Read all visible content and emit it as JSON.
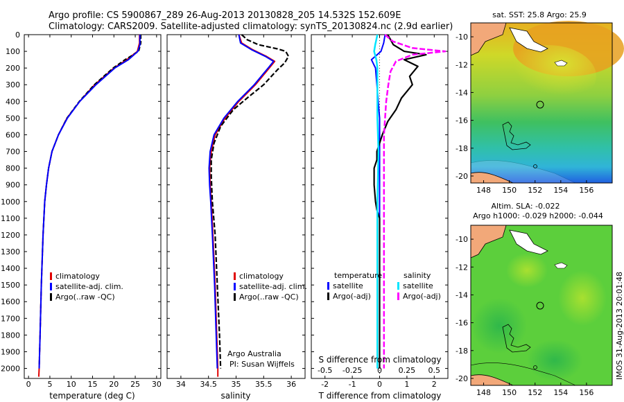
{
  "header": {
    "line1": "Argo profile: CS 5900867_289 26-Aug-2013 20130828_205 14.532S 152.609E",
    "line2": "Climatology: CARS2009. Satellite-adjusted climatology: synTS_20130824.nc (2.9d earlier)"
  },
  "depth_ticks": [
    0,
    100,
    200,
    300,
    400,
    500,
    600,
    700,
    800,
    900,
    1000,
    1100,
    1200,
    1300,
    1400,
    1500,
    1600,
    1700,
    1800,
    1900,
    2000
  ],
  "colors": {
    "climatology": "#e00000",
    "satellite": "#0000ff",
    "argo": "#000000",
    "sal_sat": "#00e5ff",
    "sal_argo": "#ff00ff"
  },
  "chart_data": [
    {
      "type": "line",
      "xlabel": "temperature (deg C)",
      "xlim": [
        -1,
        31
      ],
      "xticks": [
        0,
        5,
        10,
        15,
        20,
        25,
        30
      ],
      "ylim": [
        2060,
        0
      ],
      "legend": [
        "climatology",
        "satellite-adj. clim.",
        "Argo(..raw -QC)"
      ],
      "series": [
        {
          "name": "climatology",
          "points": [
            [
              26,
              0
            ],
            [
              26,
              50
            ],
            [
              25.5,
              100
            ],
            [
              23,
              150
            ],
            [
              20,
              200
            ],
            [
              15.5,
              300
            ],
            [
              12,
              400
            ],
            [
              9,
              500
            ],
            [
              7,
              600
            ],
            [
              5.5,
              700
            ],
            [
              4.7,
              800
            ],
            [
              4.2,
              900
            ],
            [
              3.8,
              1000
            ],
            [
              3.4,
              1200
            ],
            [
              3,
              1500
            ],
            [
              2.7,
              1800
            ],
            [
              2.5,
              2000
            ],
            [
              2.4,
              2050
            ]
          ]
        },
        {
          "name": "satellite-adj. clim.",
          "points": [
            [
              26.3,
              0
            ],
            [
              26.3,
              50
            ],
            [
              25.8,
              100
            ],
            [
              22.6,
              150
            ],
            [
              19.8,
              200
            ],
            [
              15.4,
              300
            ],
            [
              11.9,
              400
            ],
            [
              9,
              500
            ],
            [
              7,
              600
            ],
            [
              5.5,
              700
            ],
            [
              4.7,
              800
            ],
            [
              4.2,
              900
            ],
            [
              3.8,
              1000
            ],
            [
              3.4,
              1200
            ],
            [
              3,
              1500
            ],
            [
              2.7,
              1800
            ],
            [
              2.5,
              2000
            ]
          ]
        },
        {
          "name": "Argo(..raw -QC)",
          "points": [
            [
              26.1,
              0
            ],
            [
              26.1,
              60
            ],
            [
              25.6,
              100
            ],
            [
              23.4,
              150
            ],
            [
              20.2,
              200
            ],
            [
              15.8,
              300
            ],
            [
              12,
              400
            ],
            [
              9.1,
              500
            ],
            [
              7,
              600
            ],
            [
              5.5,
              700
            ],
            [
              4.7,
              800
            ],
            [
              4.2,
              900
            ],
            [
              3.8,
              1000
            ],
            [
              3.4,
              1200
            ],
            [
              3,
              1500
            ],
            [
              2.7,
              1800
            ],
            [
              2.5,
              2000
            ]
          ]
        }
      ]
    },
    {
      "type": "line",
      "xlabel": "salinity",
      "xlim": [
        33.75,
        36.25
      ],
      "xticks": [
        34,
        34.5,
        35,
        35.5,
        36
      ],
      "ylim": [
        2060,
        0
      ],
      "legend": [
        "climatology",
        "satellite-adj. clim.",
        "Argo(..raw -QC)"
      ],
      "annotations": [
        "Argo Australia",
        "PI: Susan Wijffels"
      ],
      "series": [
        {
          "name": "climatology",
          "points": [
            [
              35.05,
              0
            ],
            [
              35.1,
              50
            ],
            [
              35.3,
              90
            ],
            [
              35.55,
              130
            ],
            [
              35.7,
              160
            ],
            [
              35.6,
              200
            ],
            [
              35.35,
              300
            ],
            [
              35.05,
              400
            ],
            [
              34.8,
              500
            ],
            [
              34.62,
              600
            ],
            [
              34.55,
              700
            ],
            [
              34.52,
              800
            ],
            [
              34.53,
              900
            ],
            [
              34.55,
              1000
            ],
            [
              34.58,
              1200
            ],
            [
              34.62,
              1500
            ],
            [
              34.65,
              1800
            ],
            [
              34.67,
              2000
            ],
            [
              34.67,
              2050
            ]
          ]
        },
        {
          "name": "satellite-adj. clim.",
          "points": [
            [
              35.05,
              0
            ],
            [
              35.08,
              50
            ],
            [
              35.28,
              90
            ],
            [
              35.53,
              130
            ],
            [
              35.68,
              160
            ],
            [
              35.58,
              200
            ],
            [
              35.33,
              300
            ],
            [
              35.03,
              400
            ],
            [
              34.78,
              500
            ],
            [
              34.6,
              600
            ],
            [
              34.53,
              700
            ],
            [
              34.51,
              800
            ],
            [
              34.52,
              900
            ],
            [
              34.54,
              1000
            ],
            [
              34.57,
              1200
            ],
            [
              34.61,
              1500
            ],
            [
              34.64,
              1800
            ],
            [
              34.66,
              2000
            ]
          ]
        },
        {
          "name": "Argo(..raw -QC)",
          "points": [
            [
              35.1,
              0
            ],
            [
              35.2,
              30
            ],
            [
              35.4,
              60
            ],
            [
              35.75,
              85
            ],
            [
              35.9,
              100
            ],
            [
              35.95,
              130
            ],
            [
              35.88,
              170
            ],
            [
              35.75,
              210
            ],
            [
              35.5,
              300
            ],
            [
              35.2,
              380
            ],
            [
              34.95,
              450
            ],
            [
              34.72,
              550
            ],
            [
              34.6,
              650
            ],
            [
              34.55,
              750
            ],
            [
              34.55,
              850
            ],
            [
              34.57,
              1000
            ],
            [
              34.62,
              1200
            ],
            [
              34.66,
              1500
            ],
            [
              34.7,
              1800
            ],
            [
              34.72,
              2000
            ]
          ]
        }
      ]
    },
    {
      "type": "line",
      "xlabel_top": "S difference from climatology",
      "xlabel": "T difference from climatology",
      "xlim": [
        -2.5,
        2.5
      ],
      "xticks_top": [
        -0.5,
        -0.25,
        0,
        0.25,
        0.5
      ],
      "xticks": [
        -2,
        -1,
        0,
        1,
        2
      ],
      "ylim": [
        2060,
        0
      ],
      "legend_titles": [
        "temperature",
        "salinity"
      ],
      "legend": [
        "satellite",
        "Argo(-adj)",
        "satellite",
        "Argo(-adj)"
      ],
      "series": [
        {
          "name": "satellite",
          "quantity": "temperature",
          "points": [
            [
              0.2,
              0
            ],
            [
              0.15,
              50
            ],
            [
              0.05,
              100
            ],
            [
              -0.3,
              150
            ],
            [
              -0.15,
              200
            ],
            [
              -0.1,
              300
            ],
            [
              -0.05,
              400
            ],
            [
              0,
              500
            ],
            [
              0,
              700
            ],
            [
              0,
              1000
            ],
            [
              0,
              1500
            ],
            [
              0,
              2000
            ]
          ]
        },
        {
          "name": "Argo(-adj)",
          "quantity": "temperature",
          "points": [
            [
              0.3,
              0
            ],
            [
              0.5,
              60
            ],
            [
              0.9,
              100
            ],
            [
              1.7,
              120
            ],
            [
              0.9,
              150
            ],
            [
              1.4,
              190
            ],
            [
              1.1,
              250
            ],
            [
              1.2,
              300
            ],
            [
              0.8,
              380
            ],
            [
              0.6,
              450
            ],
            [
              0.3,
              520
            ],
            [
              0.1,
              600
            ],
            [
              0,
              650
            ],
            [
              -0.1,
              700
            ],
            [
              -0.1,
              750
            ],
            [
              -0.2,
              800
            ],
            [
              -0.2,
              900
            ],
            [
              -0.15,
              1000
            ],
            [
              -0.1,
              1050
            ],
            [
              0,
              1100
            ],
            [
              0,
              2000
            ]
          ]
        },
        {
          "name": "satellite",
          "quantity": "salinity",
          "points": [
            [
              -0.02,
              0
            ],
            [
              -0.03,
              30
            ],
            [
              -0.04,
              60
            ],
            [
              -0.05,
              100
            ],
            [
              -0.03,
              150
            ],
            [
              -0.02,
              200
            ],
            [
              -0.02,
              300
            ],
            [
              -0.02,
              500
            ],
            [
              -0.01,
              700
            ],
            [
              -0.02,
              1000
            ],
            [
              -0.02,
              1500
            ],
            [
              -0.02,
              2000
            ]
          ]
        },
        {
          "name": "Argo(-adj)",
          "quantity": "salinity",
          "points": [
            [
              0.05,
              0
            ],
            [
              0.12,
              40
            ],
            [
              0.3,
              80
            ],
            [
              0.6,
              100
            ],
            [
              0.3,
              120
            ],
            [
              0.15,
              160
            ],
            [
              0.1,
              220
            ],
            [
              0.08,
              300
            ],
            [
              0.06,
              400
            ],
            [
              0.05,
              500
            ],
            [
              0.04,
              600
            ],
            [
              0.04,
              800
            ],
            [
              0.04,
              1000
            ],
            [
              0.04,
              1500
            ],
            [
              0.04,
              2000
            ]
          ]
        }
      ]
    }
  ],
  "maps": [
    {
      "title": "sat. SST: 25.8  Argo: 25.9",
      "yticks": [
        -10,
        -12,
        -14,
        -16,
        -18,
        -20
      ],
      "xticks": [
        148,
        150,
        152,
        154,
        156
      ]
    },
    {
      "title_lines": [
        "Altim. SLA: -0.022",
        "Argo h1000: -0.029  h2000: -0.044"
      ],
      "yticks": [
        -10,
        -12,
        -14,
        -16,
        -18,
        -20
      ],
      "xticks": [
        148,
        150,
        152,
        154,
        156
      ]
    }
  ],
  "footer_vertical": "IMOS 31-Aug-2013 20:01:48"
}
